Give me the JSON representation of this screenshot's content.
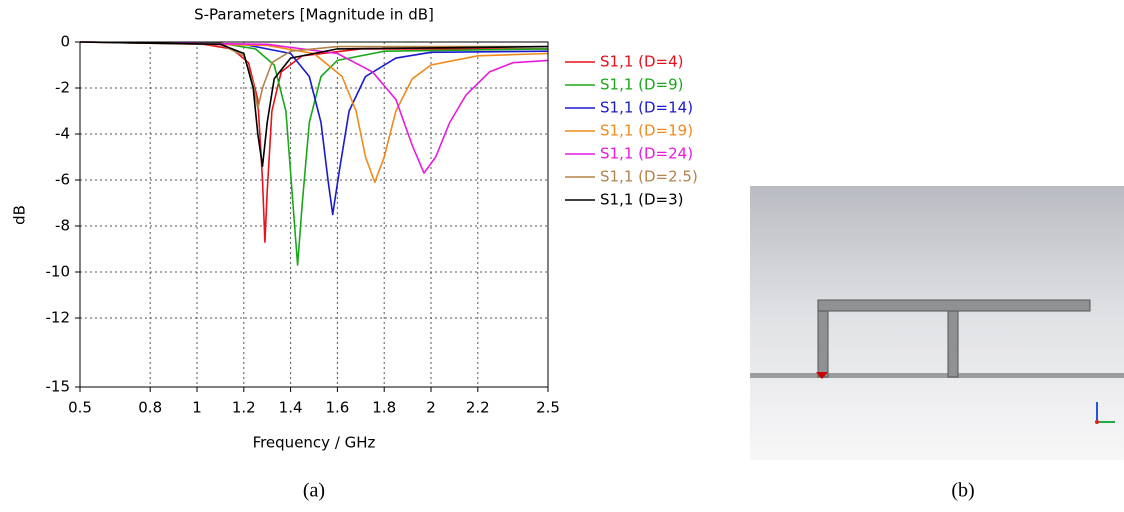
{
  "chart_data": {
    "type": "line",
    "title": "S-Parameters [Magnitude in dB]",
    "x_label": "Frequency / GHz",
    "y_label": "dB",
    "xlim": [
      0.5,
      2.5
    ],
    "xticks": [
      0.5,
      0.8,
      1,
      1.2,
      1.4,
      1.6,
      1.8,
      2,
      2.2,
      2.5
    ],
    "ylim": [
      -15,
      0
    ],
    "yticks": [
      0,
      -2,
      -4,
      -6,
      -8,
      -10,
      -12,
      -15
    ],
    "grid": true,
    "legend": "right",
    "series": [
      {
        "name": "S1,1 (D=4)",
        "color": "#e8101a",
        "x": [
          0.5,
          1.0,
          1.15,
          1.22,
          1.26,
          1.28,
          1.29,
          1.3,
          1.32,
          1.36,
          1.45,
          1.7,
          2.5
        ],
        "values": [
          0,
          -0.05,
          -0.3,
          -0.9,
          -2.5,
          -6,
          -8.7,
          -6.5,
          -3,
          -1.3,
          -0.6,
          -0.3,
          -0.3
        ]
      },
      {
        "name": "S1,1 (D=9)",
        "color": "#1aa81a",
        "x": [
          0.5,
          1.1,
          1.25,
          1.33,
          1.38,
          1.41,
          1.43,
          1.45,
          1.48,
          1.53,
          1.6,
          1.8,
          2.5
        ],
        "values": [
          0,
          -0.05,
          -0.3,
          -1,
          -3,
          -7,
          -9.7,
          -7,
          -3.5,
          -1.5,
          -0.8,
          -0.4,
          -0.3
        ]
      },
      {
        "name": "S1,1 (D=14)",
        "color": "#1a1ad0",
        "x": [
          0.5,
          1.2,
          1.4,
          1.48,
          1.53,
          1.56,
          1.58,
          1.61,
          1.65,
          1.72,
          1.85,
          2.0,
          2.5
        ],
        "values": [
          0,
          -0.1,
          -0.5,
          -1.5,
          -3.5,
          -6,
          -7.5,
          -5.5,
          -3,
          -1.5,
          -0.7,
          -0.45,
          -0.4
        ]
      },
      {
        "name": "S1,1 (D=19)",
        "color": "#f08a1a",
        "x": [
          0.5,
          1.3,
          1.5,
          1.62,
          1.68,
          1.72,
          1.76,
          1.8,
          1.85,
          1.92,
          2.0,
          2.2,
          2.5
        ],
        "values": [
          0,
          -0.15,
          -0.5,
          -1.5,
          -3,
          -5,
          -6.1,
          -5,
          -3,
          -1.6,
          -1,
          -0.6,
          -0.5
        ]
      },
      {
        "name": "S1,1 (D=24)",
        "color": "#e81ae0",
        "x": [
          0.5,
          1.3,
          1.6,
          1.75,
          1.85,
          1.92,
          1.97,
          2.02,
          2.08,
          2.15,
          2.25,
          2.35,
          2.5
        ],
        "values": [
          0,
          -0.1,
          -0.5,
          -1.3,
          -2.5,
          -4.5,
          -5.7,
          -5,
          -3.5,
          -2.3,
          -1.3,
          -0.9,
          -0.8
        ]
      },
      {
        "name": "S1,1 (D=2.5)",
        "color": "#b5834a",
        "x": [
          0.5,
          1.1,
          1.2,
          1.24,
          1.26,
          1.28,
          1.32,
          1.4,
          1.6,
          2.5
        ],
        "values": [
          0,
          -0.1,
          -0.6,
          -1.8,
          -2.9,
          -2,
          -0.9,
          -0.4,
          -0.2,
          -0.2
        ]
      },
      {
        "name": "S1,1 (D=3)",
        "color": "#000000",
        "x": [
          0.5,
          1.1,
          1.2,
          1.24,
          1.26,
          1.28,
          1.3,
          1.33,
          1.4,
          1.6,
          2.5
        ],
        "values": [
          0,
          -0.1,
          -0.5,
          -2,
          -4,
          -5.4,
          -3.5,
          -1.6,
          -0.7,
          -0.3,
          -0.2
        ]
      }
    ]
  },
  "captions": [
    "(a)",
    "(b)"
  ]
}
